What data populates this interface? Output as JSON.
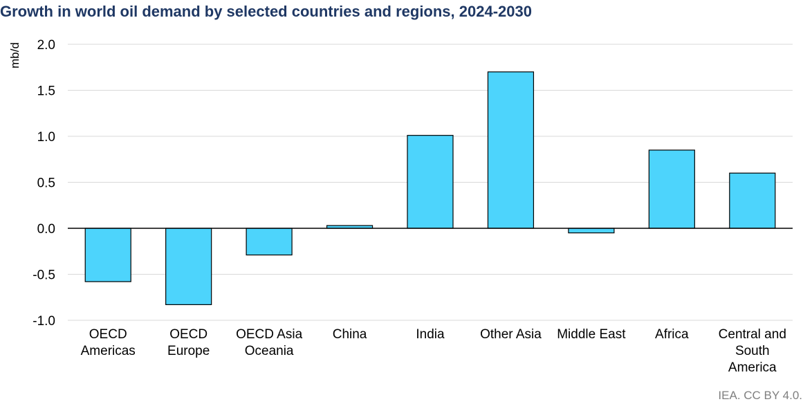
{
  "chart_data": {
    "type": "bar",
    "title": "Growth in world oil demand by selected countries and regions, 2024-2030",
    "ylabel": "mb/d",
    "xlabel": "",
    "ylim": [
      -1.0,
      2.0
    ],
    "yticks": [
      "2.0",
      "1.5",
      "1.0",
      "0.5",
      "0.0",
      "-0.5",
      "-1.0"
    ],
    "ytick_values": [
      2.0,
      1.5,
      1.0,
      0.5,
      0.0,
      -0.5,
      -1.0
    ],
    "grid": true,
    "categories": [
      [
        "OECD",
        "Americas"
      ],
      [
        "OECD",
        "Europe"
      ],
      [
        "OECD Asia",
        "Oceania"
      ],
      [
        "China"
      ],
      [
        "India"
      ],
      [
        "Other Asia"
      ],
      [
        "Middle East"
      ],
      [
        "Africa"
      ],
      [
        "Central and",
        "South",
        "America"
      ]
    ],
    "values": [
      -0.58,
      -0.83,
      -0.29,
      0.03,
      1.01,
      1.7,
      -0.05,
      0.85,
      0.6
    ],
    "bar_color": "#4dd4fc"
  },
  "source": "IEA. CC BY 4.0."
}
